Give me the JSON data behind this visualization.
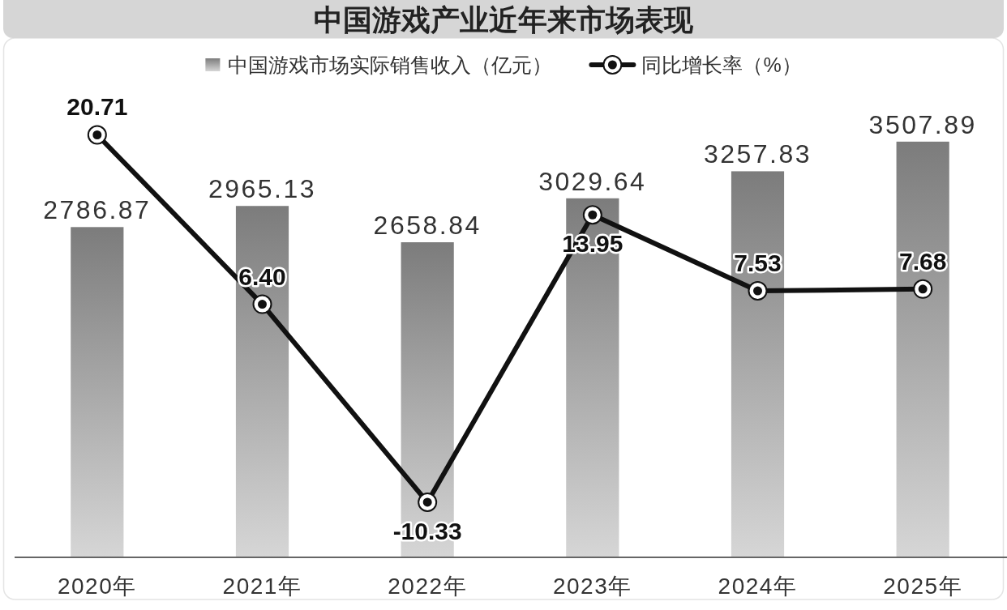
{
  "chart_data": {
    "type": "bar",
    "title": "中国游戏产业近年来市场表现",
    "categories": [
      "2020年",
      "2021年",
      "2022年",
      "2023年",
      "2024年",
      "2025年"
    ],
    "series": [
      {
        "name": "中国游戏市场实际销售收入（亿元）",
        "color": "#8a8a8a",
        "values": [
          2786.87,
          2965.13,
          2658.84,
          3029.64,
          3257.83,
          3507.89
        ],
        "value_labels": [
          "2786.87",
          "2965.13",
          "2658.84",
          "3029.64",
          "3257.83",
          "3507.89"
        ]
      },
      {
        "name": "同比增长率（%）",
        "type": "line",
        "axis": "y2",
        "color": "#111111",
        "values": [
          20.71,
          6.4,
          -10.33,
          13.95,
          7.53,
          7.68
        ],
        "value_labels": [
          "20.71",
          "6.40",
          "-10.33",
          "13.95",
          "7.53",
          "7.68"
        ]
      }
    ],
    "tick_labels": "x",
    "legend": "top",
    "marker": "circle",
    "line_style": "solid"
  }
}
